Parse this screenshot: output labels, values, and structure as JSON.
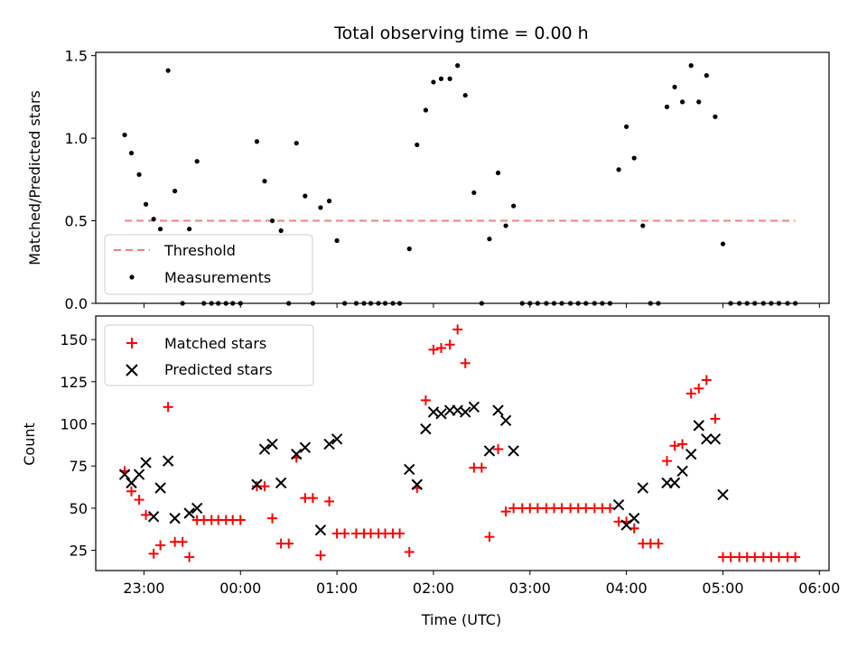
{
  "chart_data": {
    "title": "Total observing time = 0.00 h",
    "xlabel": "Time (UTC)",
    "x_unit": "hours after 00:00 UTC (negative = previous day)",
    "xlim": [
      -1.5,
      6.1
    ],
    "xticks": [
      {
        "value": -1,
        "label": "23:00"
      },
      {
        "value": 0,
        "label": "00:00"
      },
      {
        "value": 1,
        "label": "01:00"
      },
      {
        "value": 2,
        "label": "02:00"
      },
      {
        "value": 3,
        "label": "03:00"
      },
      {
        "value": 4,
        "label": "04:00"
      },
      {
        "value": 5,
        "label": "05:00"
      },
      {
        "value": 6,
        "label": "06:00"
      }
    ],
    "top": {
      "type": "scatter",
      "ylabel": "Matched/Predicted stars",
      "ylim": [
        0,
        1.52
      ],
      "yticks": [
        {
          "value": 0,
          "label": "0.0"
        },
        {
          "value": 0.5,
          "label": "0.5"
        },
        {
          "value": 1,
          "label": "1.0"
        },
        {
          "value": 1.5,
          "label": "1.5"
        }
      ],
      "legend_position": "lower-left",
      "threshold": {
        "name": "Threshold",
        "value": 0.5,
        "x_range": [
          -1.2,
          5.75
        ],
        "color": "#f08080"
      },
      "measurements": {
        "name": "Measurements",
        "color": "#000000",
        "points": [
          [
            -1.2,
            1.02
          ],
          [
            -1.13,
            0.91
          ],
          [
            -1.05,
            0.78
          ],
          [
            -0.98,
            0.6
          ],
          [
            -0.9,
            0.51
          ],
          [
            -0.83,
            0.45
          ],
          [
            -0.75,
            1.41
          ],
          [
            -0.68,
            0.68
          ],
          [
            -0.6,
            0.0
          ],
          [
            -0.53,
            0.45
          ],
          [
            -0.45,
            0.86
          ],
          [
            -0.38,
            0.0
          ],
          [
            -0.3,
            0.0
          ],
          [
            -0.23,
            0.0
          ],
          [
            -0.15,
            0.0
          ],
          [
            -0.08,
            0.0
          ],
          [
            0.0,
            0.0
          ],
          [
            0.17,
            0.98
          ],
          [
            0.25,
            0.74
          ],
          [
            0.33,
            0.5
          ],
          [
            0.42,
            0.44
          ],
          [
            0.5,
            0.0
          ],
          [
            0.58,
            0.97
          ],
          [
            0.67,
            0.65
          ],
          [
            0.75,
            0.0
          ],
          [
            0.83,
            0.58
          ],
          [
            0.92,
            0.62
          ],
          [
            1.0,
            0.38
          ],
          [
            1.08,
            0.0
          ],
          [
            1.2,
            0.0
          ],
          [
            1.28,
            0.0
          ],
          [
            1.35,
            0.0
          ],
          [
            1.43,
            0.0
          ],
          [
            1.5,
            0.0
          ],
          [
            1.58,
            0.0
          ],
          [
            1.65,
            0.0
          ],
          [
            1.75,
            0.33
          ],
          [
            1.83,
            0.96
          ],
          [
            1.92,
            1.17
          ],
          [
            2.0,
            1.34
          ],
          [
            2.08,
            1.36
          ],
          [
            2.17,
            1.36
          ],
          [
            2.25,
            1.44
          ],
          [
            2.33,
            1.26
          ],
          [
            2.42,
            0.67
          ],
          [
            2.5,
            0.0
          ],
          [
            2.58,
            0.39
          ],
          [
            2.67,
            0.79
          ],
          [
            2.75,
            0.47
          ],
          [
            2.83,
            0.59
          ],
          [
            2.92,
            0.0
          ],
          [
            3.0,
            0.0
          ],
          [
            3.08,
            0.0
          ],
          [
            3.17,
            0.0
          ],
          [
            3.25,
            0.0
          ],
          [
            3.33,
            0.0
          ],
          [
            3.42,
            0.0
          ],
          [
            3.5,
            0.0
          ],
          [
            3.58,
            0.0
          ],
          [
            3.67,
            0.0
          ],
          [
            3.75,
            0.0
          ],
          [
            3.83,
            0.0
          ],
          [
            3.92,
            0.81
          ],
          [
            4.0,
            1.07
          ],
          [
            4.08,
            0.88
          ],
          [
            4.17,
            0.47
          ],
          [
            4.25,
            0.0
          ],
          [
            4.33,
            0.0
          ],
          [
            4.42,
            1.19
          ],
          [
            4.5,
            1.31
          ],
          [
            4.58,
            1.22
          ],
          [
            4.67,
            1.44
          ],
          [
            4.75,
            1.22
          ],
          [
            4.83,
            1.38
          ],
          [
            4.92,
            1.13
          ],
          [
            5.0,
            0.36
          ],
          [
            5.08,
            0.0
          ],
          [
            5.17,
            0.0
          ],
          [
            5.25,
            0.0
          ],
          [
            5.33,
            0.0
          ],
          [
            5.42,
            0.0
          ],
          [
            5.5,
            0.0
          ],
          [
            5.58,
            0.0
          ],
          [
            5.67,
            0.0
          ],
          [
            5.75,
            0.0
          ]
        ]
      }
    },
    "bottom": {
      "type": "scatter",
      "ylabel": "Count",
      "ylim": [
        13,
        164
      ],
      "yticks": [
        {
          "value": 25,
          "label": "25"
        },
        {
          "value": 50,
          "label": "50"
        },
        {
          "value": 75,
          "label": "75"
        },
        {
          "value": 100,
          "label": "100"
        },
        {
          "value": 125,
          "label": "125"
        },
        {
          "value": 150,
          "label": "150"
        }
      ],
      "legend_position": "upper-left",
      "matched": {
        "name": "Matched stars",
        "color": "#ff0000",
        "points": [
          [
            -1.2,
            72
          ],
          [
            -1.13,
            60
          ],
          [
            -1.05,
            55
          ],
          [
            -0.98,
            46
          ],
          [
            -0.9,
            23
          ],
          [
            -0.83,
            28
          ],
          [
            -0.75,
            110
          ],
          [
            -0.68,
            30
          ],
          [
            -0.6,
            30
          ],
          [
            -0.53,
            21
          ],
          [
            -0.45,
            43
          ],
          [
            -0.38,
            43
          ],
          [
            -0.3,
            43
          ],
          [
            -0.23,
            43
          ],
          [
            -0.15,
            43
          ],
          [
            -0.08,
            43
          ],
          [
            0.0,
            43
          ],
          [
            0.17,
            63
          ],
          [
            0.25,
            63
          ],
          [
            0.33,
            44
          ],
          [
            0.42,
            29
          ],
          [
            0.5,
            29
          ],
          [
            0.58,
            80
          ],
          [
            0.67,
            56
          ],
          [
            0.75,
            56
          ],
          [
            0.83,
            22
          ],
          [
            0.92,
            54
          ],
          [
            1.0,
            35
          ],
          [
            1.08,
            35
          ],
          [
            1.2,
            35
          ],
          [
            1.28,
            35
          ],
          [
            1.35,
            35
          ],
          [
            1.43,
            35
          ],
          [
            1.5,
            35
          ],
          [
            1.58,
            35
          ],
          [
            1.65,
            35
          ],
          [
            1.75,
            24
          ],
          [
            1.83,
            62
          ],
          [
            1.92,
            114
          ],
          [
            2.0,
            144
          ],
          [
            2.08,
            145
          ],
          [
            2.17,
            147
          ],
          [
            2.25,
            156
          ],
          [
            2.33,
            136
          ],
          [
            2.42,
            74
          ],
          [
            2.5,
            74
          ],
          [
            2.58,
            33
          ],
          [
            2.67,
            85
          ],
          [
            2.75,
            48
          ],
          [
            2.83,
            50
          ],
          [
            2.92,
            50
          ],
          [
            3.0,
            50
          ],
          [
            3.08,
            50
          ],
          [
            3.17,
            50
          ],
          [
            3.25,
            50
          ],
          [
            3.33,
            50
          ],
          [
            3.42,
            50
          ],
          [
            3.5,
            50
          ],
          [
            3.58,
            50
          ],
          [
            3.67,
            50
          ],
          [
            3.75,
            50
          ],
          [
            3.83,
            50
          ],
          [
            3.92,
            42
          ],
          [
            4.0,
            42
          ],
          [
            4.08,
            38
          ],
          [
            4.17,
            29
          ],
          [
            4.25,
            29
          ],
          [
            4.33,
            29
          ],
          [
            4.42,
            78
          ],
          [
            4.5,
            87
          ],
          [
            4.58,
            88
          ],
          [
            4.67,
            118
          ],
          [
            4.75,
            121
          ],
          [
            4.83,
            126
          ],
          [
            4.92,
            103
          ],
          [
            5.0,
            21
          ],
          [
            5.08,
            21
          ],
          [
            5.17,
            21
          ],
          [
            5.25,
            21
          ],
          [
            5.33,
            21
          ],
          [
            5.42,
            21
          ],
          [
            5.5,
            21
          ],
          [
            5.58,
            21
          ],
          [
            5.67,
            21
          ],
          [
            5.75,
            21
          ]
        ]
      },
      "predicted": {
        "name": "Predicted stars",
        "color": "#000000",
        "points": [
          [
            -1.2,
            70
          ],
          [
            -1.13,
            65
          ],
          [
            -1.05,
            70
          ],
          [
            -0.98,
            77
          ],
          [
            -0.9,
            45
          ],
          [
            -0.83,
            62
          ],
          [
            -0.75,
            78
          ],
          [
            -0.68,
            44
          ],
          [
            -0.53,
            47
          ],
          [
            -0.45,
            50
          ],
          [
            0.17,
            64
          ],
          [
            0.25,
            85
          ],
          [
            0.33,
            88
          ],
          [
            0.42,
            65
          ],
          [
            0.58,
            82
          ],
          [
            0.67,
            86
          ],
          [
            0.83,
            37
          ],
          [
            0.92,
            88
          ],
          [
            1.0,
            91
          ],
          [
            1.75,
            73
          ],
          [
            1.83,
            64
          ],
          [
            1.92,
            97
          ],
          [
            2.0,
            107
          ],
          [
            2.08,
            106
          ],
          [
            2.17,
            108
          ],
          [
            2.25,
            108
          ],
          [
            2.33,
            107
          ],
          [
            2.42,
            110
          ],
          [
            2.58,
            84
          ],
          [
            2.67,
            108
          ],
          [
            2.75,
            102
          ],
          [
            2.83,
            84
          ],
          [
            3.92,
            52
          ],
          [
            4.0,
            40
          ],
          [
            4.08,
            44
          ],
          [
            4.17,
            62
          ],
          [
            4.42,
            65
          ],
          [
            4.5,
            65
          ],
          [
            4.58,
            72
          ],
          [
            4.67,
            82
          ],
          [
            4.75,
            99
          ],
          [
            4.83,
            91
          ],
          [
            4.92,
            91
          ],
          [
            5.0,
            58
          ]
        ]
      }
    }
  }
}
